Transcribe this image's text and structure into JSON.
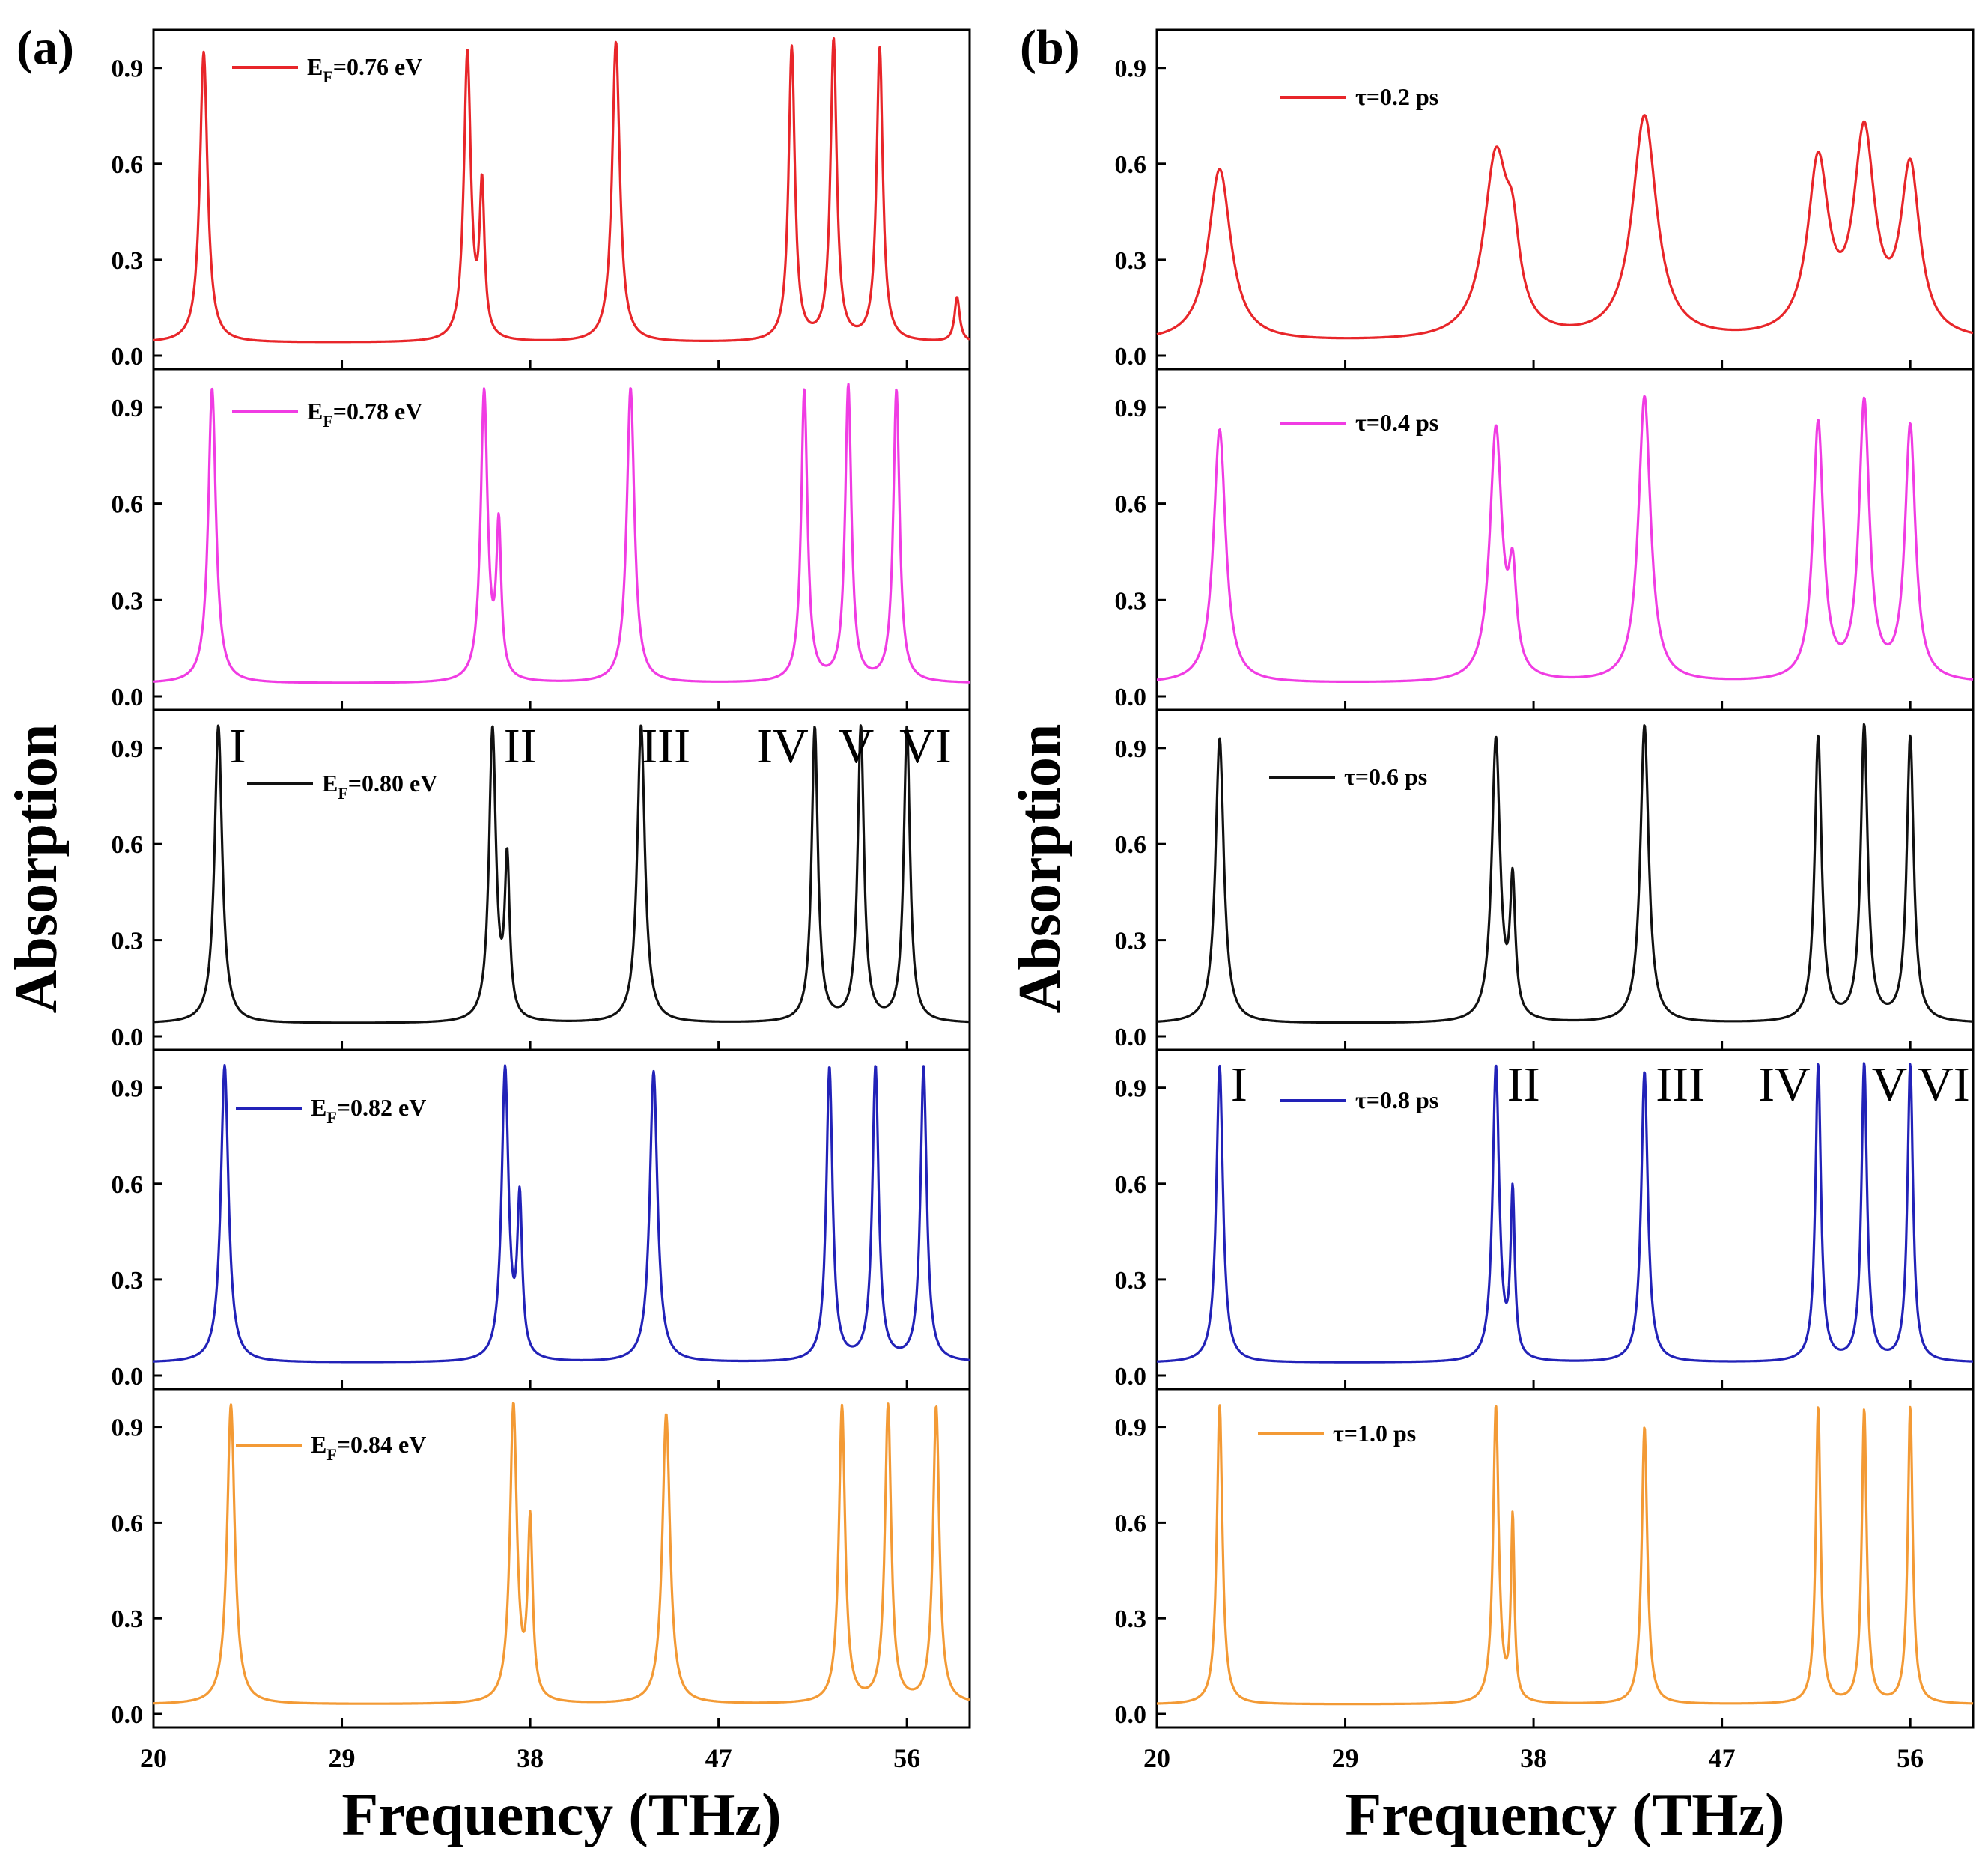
{
  "panels": [
    {
      "letter": "(a)",
      "ylabel": "Absorption",
      "xlabel": "Frequency (THz)",
      "series": [
        {
          "name": "E_F=0.76 eV",
          "legend_prefix": "E",
          "legend_sub": "F",
          "legend_suffix": "=0.76 eV",
          "color": "#e8262a"
        },
        {
          "name": "E_F=0.78 eV",
          "legend_prefix": "E",
          "legend_sub": "F",
          "legend_suffix": "=0.78 eV",
          "color": "#f03ce3"
        },
        {
          "name": "E_F=0.80 eV",
          "legend_prefix": "E",
          "legend_sub": "F",
          "legend_suffix": "=0.80 eV",
          "color": "#111111"
        },
        {
          "name": "E_F=0.82 eV",
          "legend_prefix": "E",
          "legend_sub": "F",
          "legend_suffix": "=0.82 eV",
          "color": "#2222b8"
        },
        {
          "name": "E_F=0.84 eV",
          "legend_prefix": "E",
          "legend_sub": "F",
          "legend_suffix": "=0.84 eV",
          "color": "#f39a35"
        }
      ],
      "mode_labels": [
        "I",
        "II",
        "III",
        "IV",
        "V",
        "VI"
      ]
    },
    {
      "letter": "(b)",
      "ylabel": "Absorption",
      "xlabel": "Frequency (THz)",
      "series": [
        {
          "name": "τ=0.2 ps",
          "legend_prefix": "τ=0.2 ps",
          "legend_sub": "",
          "legend_suffix": "",
          "color": "#e8262a"
        },
        {
          "name": "τ=0.4 ps",
          "legend_prefix": "τ=0.4 ps",
          "legend_sub": "",
          "legend_suffix": "",
          "color": "#f03ce3"
        },
        {
          "name": "τ=0.6 ps",
          "legend_prefix": "τ=0.6 ps",
          "legend_sub": "",
          "legend_suffix": "",
          "color": "#111111"
        },
        {
          "name": "τ=0.8 ps",
          "legend_prefix": "τ=0.8 ps",
          "legend_sub": "",
          "legend_suffix": "",
          "color": "#2222b8"
        },
        {
          "name": "τ=1.0 ps",
          "legend_prefix": "τ=1.0 ps",
          "legend_sub": "",
          "legend_suffix": "",
          "color": "#f39a35"
        }
      ],
      "mode_labels": [
        "I",
        "II",
        "III",
        "IV",
        "V",
        "VI"
      ]
    }
  ],
  "chart_data": [
    {
      "type": "line",
      "title": "(a)",
      "xlabel": "Frequency (THz)",
      "ylabel": "Absorption",
      "xlim": [
        20,
        59
      ],
      "ylim": [
        0,
        1.0
      ],
      "xticks": [
        20,
        29,
        38,
        47,
        56
      ],
      "yticks": [
        0.0,
        0.3,
        0.6,
        0.9
      ],
      "ytick_labels": [
        "0.0",
        "0.3",
        "0.6",
        "0.9"
      ],
      "series": [
        {
          "name": "E_F=0.76 eV",
          "baseline": 0.04,
          "peaks": [
            {
              "f": 22.4,
              "a": 0.95,
              "w": 0.22
            },
            {
              "f": 35.0,
              "a": 0.94,
              "w": 0.2
            },
            {
              "f": 35.7,
              "a": 0.5,
              "w": 0.14
            },
            {
              "f": 42.1,
              "a": 0.98,
              "w": 0.22
            },
            {
              "f": 50.5,
              "a": 0.96,
              "w": 0.18
            },
            {
              "f": 52.5,
              "a": 0.98,
              "w": 0.18
            },
            {
              "f": 54.7,
              "a": 0.96,
              "w": 0.18
            },
            {
              "f": 58.4,
              "a": 0.18,
              "w": 0.15
            }
          ]
        },
        {
          "name": "E_F=0.78 eV",
          "baseline": 0.04,
          "peaks": [
            {
              "f": 22.8,
              "a": 0.96,
              "w": 0.22
            },
            {
              "f": 35.8,
              "a": 0.94,
              "w": 0.2
            },
            {
              "f": 36.5,
              "a": 0.5,
              "w": 0.14
            },
            {
              "f": 42.8,
              "a": 0.96,
              "w": 0.22
            },
            {
              "f": 51.1,
              "a": 0.95,
              "w": 0.18
            },
            {
              "f": 53.2,
              "a": 0.96,
              "w": 0.18
            },
            {
              "f": 55.5,
              "a": 0.95,
              "w": 0.18
            }
          ]
        },
        {
          "name": "E_F=0.80 eV",
          "baseline": 0.04,
          "peaks": [
            {
              "f": 23.1,
              "a": 0.97,
              "w": 0.22
            },
            {
              "f": 36.2,
              "a": 0.95,
              "w": 0.2
            },
            {
              "f": 36.9,
              "a": 0.52,
              "w": 0.14
            },
            {
              "f": 43.3,
              "a": 0.97,
              "w": 0.22
            },
            {
              "f": 51.6,
              "a": 0.96,
              "w": 0.18
            },
            {
              "f": 53.8,
              "a": 0.96,
              "w": 0.18
            },
            {
              "f": 56.0,
              "a": 0.96,
              "w": 0.18
            }
          ]
        },
        {
          "name": "E_F=0.82 eV",
          "baseline": 0.04,
          "peaks": [
            {
              "f": 23.4,
              "a": 0.97,
              "w": 0.22
            },
            {
              "f": 36.8,
              "a": 0.95,
              "w": 0.2
            },
            {
              "f": 37.5,
              "a": 0.52,
              "w": 0.14
            },
            {
              "f": 43.9,
              "a": 0.95,
              "w": 0.22
            },
            {
              "f": 52.3,
              "a": 0.96,
              "w": 0.18
            },
            {
              "f": 54.5,
              "a": 0.96,
              "w": 0.18
            },
            {
              "f": 56.8,
              "a": 0.96,
              "w": 0.18
            }
          ]
        },
        {
          "name": "E_F=0.84 eV",
          "baseline": 0.03,
          "peaks": [
            {
              "f": 23.7,
              "a": 0.97,
              "w": 0.22
            },
            {
              "f": 37.2,
              "a": 0.96,
              "w": 0.2
            },
            {
              "f": 38.0,
              "a": 0.58,
              "w": 0.14
            },
            {
              "f": 44.5,
              "a": 0.94,
              "w": 0.22
            },
            {
              "f": 52.9,
              "a": 0.96,
              "w": 0.18
            },
            {
              "f": 55.1,
              "a": 0.96,
              "w": 0.18
            },
            {
              "f": 57.4,
              "a": 0.96,
              "w": 0.18
            }
          ]
        }
      ]
    },
    {
      "type": "line",
      "title": "(b)",
      "xlabel": "Frequency (THz)",
      "ylabel": "Absorption",
      "xlim": [
        20,
        59
      ],
      "ylim": [
        0,
        1.0
      ],
      "xticks": [
        20,
        29,
        38,
        47,
        56
      ],
      "yticks": [
        0.0,
        0.3,
        0.6,
        0.9
      ],
      "ytick_labels": [
        "0.0",
        "0.3",
        "0.6",
        "0.9"
      ],
      "series": [
        {
          "name": "τ=0.2 ps",
          "baseline": 0.04,
          "peaks": [
            {
              "f": 23.0,
              "a": 0.58,
              "w": 0.65
            },
            {
              "f": 36.2,
              "a": 0.6,
              "w": 0.7
            },
            {
              "f": 37.0,
              "a": 0.25,
              "w": 0.4
            },
            {
              "f": 43.3,
              "a": 0.74,
              "w": 0.7
            },
            {
              "f": 51.6,
              "a": 0.58,
              "w": 0.6
            },
            {
              "f": 53.8,
              "a": 0.66,
              "w": 0.6
            },
            {
              "f": 56.0,
              "a": 0.56,
              "w": 0.55
            }
          ]
        },
        {
          "name": "τ=0.4 ps",
          "baseline": 0.04,
          "peaks": [
            {
              "f": 23.0,
              "a": 0.83,
              "w": 0.35
            },
            {
              "f": 36.2,
              "a": 0.82,
              "w": 0.35
            },
            {
              "f": 37.0,
              "a": 0.33,
              "w": 0.22
            },
            {
              "f": 43.3,
              "a": 0.93,
              "w": 0.35
            },
            {
              "f": 51.6,
              "a": 0.84,
              "w": 0.3
            },
            {
              "f": 53.8,
              "a": 0.9,
              "w": 0.3
            },
            {
              "f": 56.0,
              "a": 0.83,
              "w": 0.3
            }
          ]
        },
        {
          "name": "τ=0.6 ps",
          "baseline": 0.04,
          "peaks": [
            {
              "f": 23.0,
              "a": 0.93,
              "w": 0.24
            },
            {
              "f": 36.2,
              "a": 0.92,
              "w": 0.24
            },
            {
              "f": 37.0,
              "a": 0.45,
              "w": 0.15
            },
            {
              "f": 43.3,
              "a": 0.97,
              "w": 0.24
            },
            {
              "f": 51.6,
              "a": 0.93,
              "w": 0.2
            },
            {
              "f": 53.8,
              "a": 0.96,
              "w": 0.2
            },
            {
              "f": 56.0,
              "a": 0.93,
              "w": 0.2
            }
          ]
        },
        {
          "name": "τ=0.8 ps",
          "baseline": 0.04,
          "peaks": [
            {
              "f": 23.0,
              "a": 0.97,
              "w": 0.19
            },
            {
              "f": 36.2,
              "a": 0.96,
              "w": 0.19
            },
            {
              "f": 37.0,
              "a": 0.55,
              "w": 0.12
            },
            {
              "f": 43.3,
              "a": 0.95,
              "w": 0.19
            },
            {
              "f": 51.6,
              "a": 0.97,
              "w": 0.16
            },
            {
              "f": 53.8,
              "a": 0.97,
              "w": 0.16
            },
            {
              "f": 56.0,
              "a": 0.97,
              "w": 0.16
            }
          ]
        },
        {
          "name": "τ=1.0 ps",
          "baseline": 0.03,
          "peaks": [
            {
              "f": 23.0,
              "a": 0.97,
              "w": 0.16
            },
            {
              "f": 36.2,
              "a": 0.96,
              "w": 0.16
            },
            {
              "f": 37.0,
              "a": 0.6,
              "w": 0.1
            },
            {
              "f": 43.3,
              "a": 0.9,
              "w": 0.16
            },
            {
              "f": 51.6,
              "a": 0.96,
              "w": 0.14
            },
            {
              "f": 53.8,
              "a": 0.95,
              "w": 0.14
            },
            {
              "f": 56.0,
              "a": 0.96,
              "w": 0.14
            }
          ]
        }
      ]
    }
  ]
}
